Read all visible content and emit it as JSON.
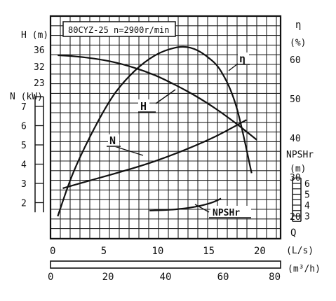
{
  "chart_data": {
    "type": "line",
    "title": "80CYZ-25 n=2900r/min",
    "x_axis": {
      "label": "(L/s)",
      "range": [
        0,
        22
      ],
      "ticks": [
        0,
        5,
        10,
        15,
        20
      ]
    },
    "x2_axis": {
      "label": "(m³/h)",
      "range": [
        0,
        80
      ],
      "ticks": [
        0,
        20,
        40,
        60,
        80
      ]
    },
    "y_left_H": {
      "label": "H (m)",
      "ticks": [
        36,
        32,
        23
      ]
    },
    "y_left_N": {
      "label": "N (kW)",
      "range": [
        1.5,
        7.5
      ],
      "ticks": [
        7,
        6,
        5,
        4,
        3,
        2
      ]
    },
    "y_right_eta": {
      "label": "η",
      "unit": "(%)",
      "range": [
        20,
        70
      ],
      "ticks": [
        60,
        50,
        40,
        30,
        20
      ]
    },
    "y_right_npsh": {
      "label": "NPSHr",
      "unit": "(m)",
      "range": [
        2.5,
        6.5
      ],
      "ticks": [
        6,
        5,
        4,
        3
      ]
    },
    "flow_label": "Q",
    "series": [
      {
        "name": "H",
        "x": [
          0.5,
          2,
          4,
          6,
          8,
          10,
          12,
          14,
          16,
          18,
          20
        ],
        "y": [
          35.0,
          34.8,
          34.3,
          33.5,
          32.3,
          30.7,
          28.6,
          26.2,
          23.4,
          20.2,
          16.7
        ]
      },
      {
        "name": "η",
        "x": [
          0.5,
          2,
          4,
          6,
          8,
          10,
          12,
          13.5,
          15,
          16.5,
          18,
          19.5
        ],
        "y": [
          20,
          31,
          42,
          51,
          57,
          61,
          63,
          63,
          61,
          57,
          48,
          31
        ]
      },
      {
        "name": "N",
        "x": [
          1,
          4,
          7,
          10,
          13,
          16,
          19
        ],
        "y": [
          2.75,
          3.2,
          3.65,
          4.15,
          4.75,
          5.45,
          6.3
        ]
      },
      {
        "name": "NPSHr",
        "x": [
          9.5,
          11,
          12.5,
          14,
          15.5,
          16.5
        ],
        "y": [
          3.5,
          3.55,
          3.65,
          3.85,
          4.2,
          4.6
        ]
      }
    ],
    "curve_labels": {
      "H": "H",
      "eta": "η",
      "N": "N",
      "NPSHr": "NPSHr"
    },
    "grid": true
  }
}
